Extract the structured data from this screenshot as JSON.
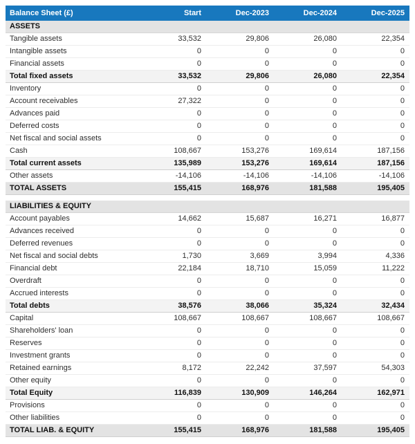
{
  "colors": {
    "header_bg": "#1878be",
    "header_text": "#ffffff",
    "section_bg": "#e3e3e3",
    "subtotal_bg": "#f3f3f3",
    "grandtotal_bg": "#e3e3e3"
  },
  "chart_data": {
    "type": "table",
    "title": "Balance Sheet (£)",
    "columns": [
      "Start",
      "Dec-2023",
      "Dec-2024",
      "Dec-2025"
    ],
    "rows": [
      {
        "label": "ASSETS",
        "type": "section",
        "values": [
          "",
          "",
          "",
          ""
        ]
      },
      {
        "label": "Tangible assets",
        "type": "normal",
        "values": [
          "33,532",
          "29,806",
          "26,080",
          "22,354"
        ]
      },
      {
        "label": "Intangible assets",
        "type": "normal",
        "values": [
          "0",
          "0",
          "0",
          "0"
        ]
      },
      {
        "label": "Financial assets",
        "type": "normal",
        "values": [
          "0",
          "0",
          "0",
          "0"
        ]
      },
      {
        "label": "Total fixed assets",
        "type": "subtotal",
        "values": [
          "33,532",
          "29,806",
          "26,080",
          "22,354"
        ]
      },
      {
        "label": "Inventory",
        "type": "normal",
        "values": [
          "0",
          "0",
          "0",
          "0"
        ]
      },
      {
        "label": "Account receivables",
        "type": "normal",
        "values": [
          "27,322",
          "0",
          "0",
          "0"
        ]
      },
      {
        "label": "Advances paid",
        "type": "normal",
        "values": [
          "0",
          "0",
          "0",
          "0"
        ]
      },
      {
        "label": "Deferred costs",
        "type": "normal",
        "values": [
          "0",
          "0",
          "0",
          "0"
        ]
      },
      {
        "label": "Net fiscal and social assets",
        "type": "normal",
        "values": [
          "0",
          "0",
          "0",
          "0"
        ]
      },
      {
        "label": "Cash",
        "type": "normal",
        "values": [
          "108,667",
          "153,276",
          "169,614",
          "187,156"
        ]
      },
      {
        "label": "Total current assets",
        "type": "subtotal",
        "values": [
          "135,989",
          "153,276",
          "169,614",
          "187,156"
        ]
      },
      {
        "label": "Other assets",
        "type": "normal",
        "values": [
          "-14,106",
          "-14,106",
          "-14,106",
          "-14,106"
        ]
      },
      {
        "label": "TOTAL ASSETS",
        "type": "grandtotal",
        "values": [
          "155,415",
          "168,976",
          "181,588",
          "195,405"
        ]
      },
      {
        "label": "",
        "type": "spacer",
        "values": [
          "",
          "",
          "",
          ""
        ]
      },
      {
        "label": "LIABILITIES & EQUITY",
        "type": "section",
        "values": [
          "",
          "",
          "",
          ""
        ]
      },
      {
        "label": "Account payables",
        "type": "normal",
        "values": [
          "14,662",
          "15,687",
          "16,271",
          "16,877"
        ]
      },
      {
        "label": "Advances received",
        "type": "normal",
        "values": [
          "0",
          "0",
          "0",
          "0"
        ]
      },
      {
        "label": "Deferred revenues",
        "type": "normal",
        "values": [
          "0",
          "0",
          "0",
          "0"
        ]
      },
      {
        "label": "Net fiscal and social debts",
        "type": "normal",
        "values": [
          "1,730",
          "3,669",
          "3,994",
          "4,336"
        ]
      },
      {
        "label": "Financial debt",
        "type": "normal",
        "values": [
          "22,184",
          "18,710",
          "15,059",
          "11,222"
        ]
      },
      {
        "label": "Overdraft",
        "type": "normal",
        "values": [
          "0",
          "0",
          "0",
          "0"
        ]
      },
      {
        "label": "Accrued interests",
        "type": "normal",
        "values": [
          "0",
          "0",
          "0",
          "0"
        ]
      },
      {
        "label": "Total debts",
        "type": "subtotal",
        "values": [
          "38,576",
          "38,066",
          "35,324",
          "32,434"
        ]
      },
      {
        "label": "Capital",
        "type": "normal",
        "values": [
          "108,667",
          "108,667",
          "108,667",
          "108,667"
        ]
      },
      {
        "label": "Shareholders' loan",
        "type": "normal",
        "values": [
          "0",
          "0",
          "0",
          "0"
        ]
      },
      {
        "label": "Reserves",
        "type": "normal",
        "values": [
          "0",
          "0",
          "0",
          "0"
        ]
      },
      {
        "label": "Investment grants",
        "type": "normal",
        "values": [
          "0",
          "0",
          "0",
          "0"
        ]
      },
      {
        "label": "Retained earnings",
        "type": "normal",
        "values": [
          "8,172",
          "22,242",
          "37,597",
          "54,303"
        ]
      },
      {
        "label": "Other equity",
        "type": "normal",
        "values": [
          "0",
          "0",
          "0",
          "0"
        ]
      },
      {
        "label": "Total Equity",
        "type": "subtotal",
        "values": [
          "116,839",
          "130,909",
          "146,264",
          "162,971"
        ]
      },
      {
        "label": "Provisions",
        "type": "normal",
        "values": [
          "0",
          "0",
          "0",
          "0"
        ]
      },
      {
        "label": "Other liabilities",
        "type": "normal",
        "values": [
          "0",
          "0",
          "0",
          "0"
        ]
      },
      {
        "label": "TOTAL LIAB. & EQUITY",
        "type": "grandtotal",
        "values": [
          "155,415",
          "168,976",
          "181,588",
          "195,405"
        ]
      }
    ]
  }
}
